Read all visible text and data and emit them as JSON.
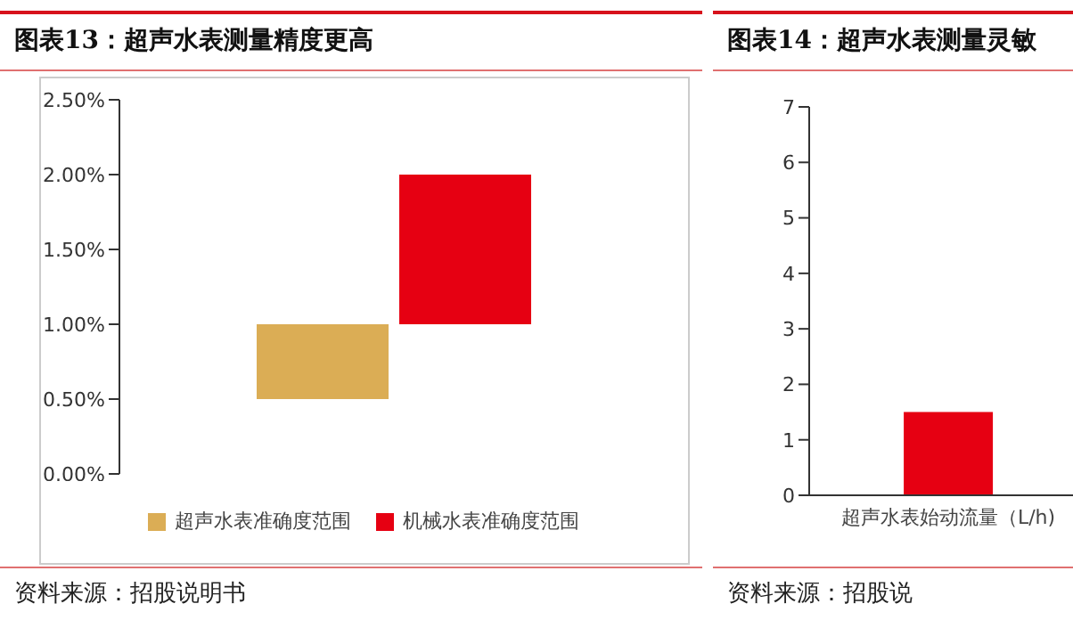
{
  "chart_data": [
    {
      "type": "bar",
      "title": "图表13：超声水表测量精度更高",
      "categories": [
        null
      ],
      "series": [
        {
          "name": "超声水表准确度范围",
          "color": "#dbad55",
          "values": [
            0.5
          ],
          "base": [
            0.5
          ]
        },
        {
          "name": "机械水表准确度范围",
          "color": "#e60012",
          "values": [
            1.0
          ],
          "base": [
            1.0
          ]
        }
      ],
      "ylim": [
        0,
        2.5
      ],
      "yticks": [
        {
          "value": 0,
          "label": "0.00%"
        },
        {
          "value": 0.5,
          "label": "0.50%"
        },
        {
          "value": 1,
          "label": "1.00%"
        },
        {
          "value": 1.5,
          "label": "1.50%"
        },
        {
          "value": 2,
          "label": "2.00%"
        },
        {
          "value": 2.5,
          "label": "2.50%"
        }
      ],
      "legend": "bottom",
      "annotations": [
        "资料来源：招股说明书"
      ]
    },
    {
      "type": "bar",
      "title": "图表14：超声水表测量灵敏",
      "categories": [
        "超声水表始动流量（L/h)"
      ],
      "values": [
        1.5
      ],
      "color": "#e60012",
      "ylim": [
        0,
        7
      ],
      "yticks": [
        0,
        1,
        2,
        3,
        4,
        5,
        6,
        7
      ],
      "annotations": [
        "资料来源：招股说"
      ]
    }
  ]
}
